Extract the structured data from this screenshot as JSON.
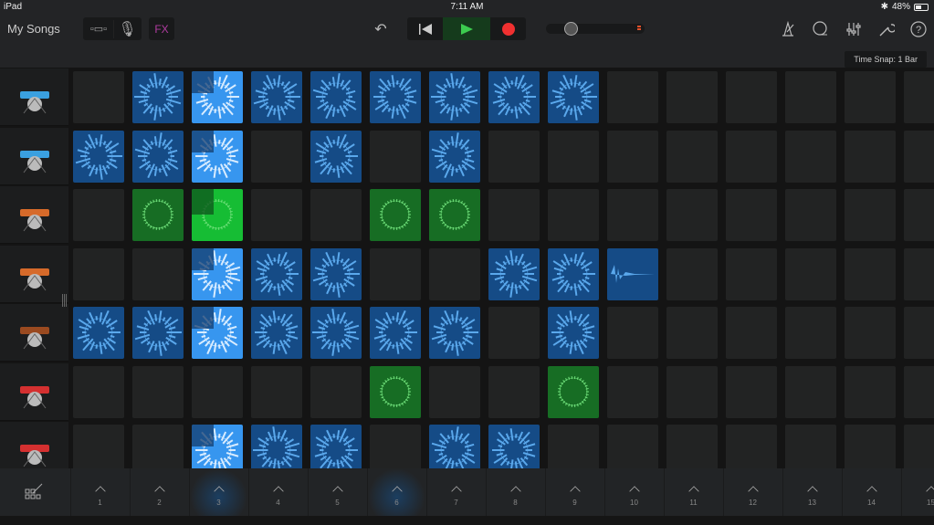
{
  "status_bar": {
    "device": "iPad",
    "time": "7:11 AM",
    "battery": "48%",
    "battery_level": 0.48
  },
  "toolbar": {
    "my_songs": "My Songs",
    "fx": "FX",
    "time_snap": "Time Snap: 1 Bar",
    "volume_level": 0.2,
    "icons": [
      "view-toggle-icon",
      "microphone-icon",
      "undo-icon",
      "go-to-start-icon",
      "play-icon",
      "record-icon",
      "metronome-icon",
      "loop-browser-icon",
      "mixer-icon",
      "settings-wrench-icon",
      "help-icon"
    ],
    "colors": {
      "play": "#3ccb4f",
      "record": "#f03030",
      "fx": "#b03ca0"
    }
  },
  "tracks": [
    {
      "instrument": "drum-kit",
      "cells": [
        {
          "col": 2,
          "color": "blue"
        },
        {
          "col": 3,
          "color": "blue",
          "playing": true
        },
        {
          "col": 4,
          "color": "blue"
        },
        {
          "col": 5,
          "color": "blue"
        },
        {
          "col": 6,
          "color": "blue"
        },
        {
          "col": 7,
          "color": "blue"
        },
        {
          "col": 8,
          "color": "blue"
        },
        {
          "col": 9,
          "color": "blue"
        }
      ]
    },
    {
      "instrument": "drum-kit",
      "cells": [
        {
          "col": 1,
          "color": "blue"
        },
        {
          "col": 2,
          "color": "blue"
        },
        {
          "col": 3,
          "color": "blue",
          "playing": true
        },
        {
          "col": 5,
          "color": "blue"
        },
        {
          "col": 7,
          "color": "blue"
        }
      ]
    },
    {
      "instrument": "synthesizer",
      "cells": [
        {
          "col": 2,
          "color": "green"
        },
        {
          "col": 3,
          "color": "green",
          "playing": true
        },
        {
          "col": 6,
          "color": "green"
        },
        {
          "col": 7,
          "color": "green"
        }
      ]
    },
    {
      "instrument": "synthesizer",
      "cells": [
        {
          "col": 3,
          "color": "blue",
          "playing": true
        },
        {
          "col": 4,
          "color": "blue"
        },
        {
          "col": 5,
          "color": "blue"
        },
        {
          "col": 8,
          "color": "blue"
        },
        {
          "col": 9,
          "color": "blue"
        },
        {
          "col": 10,
          "color": "blue",
          "oneshot": true
        }
      ]
    },
    {
      "instrument": "electric-guitar",
      "cells": [
        {
          "col": 1,
          "color": "blue"
        },
        {
          "col": 2,
          "color": "blue"
        },
        {
          "col": 3,
          "color": "blue",
          "playing": true
        },
        {
          "col": 4,
          "color": "blue"
        },
        {
          "col": 5,
          "color": "blue"
        },
        {
          "col": 6,
          "color": "blue"
        },
        {
          "col": 7,
          "color": "blue"
        },
        {
          "col": 9,
          "color": "blue"
        }
      ]
    },
    {
      "instrument": "red-keyboard",
      "cells": [
        {
          "col": 6,
          "color": "green"
        },
        {
          "col": 9,
          "color": "green"
        }
      ]
    },
    {
      "instrument": "red-keyboard",
      "cells": [
        {
          "col": 3,
          "color": "blue",
          "playing": true
        },
        {
          "col": 4,
          "color": "blue"
        },
        {
          "col": 5,
          "color": "blue"
        },
        {
          "col": 7,
          "color": "blue"
        },
        {
          "col": 8,
          "color": "blue"
        }
      ]
    }
  ],
  "column_triggers": [
    "1",
    "2",
    "3",
    "4",
    "5",
    "6",
    "7",
    "8",
    "9",
    "10",
    "11",
    "12",
    "13",
    "14",
    "15"
  ],
  "active_triggers": [
    "3",
    "6"
  ]
}
